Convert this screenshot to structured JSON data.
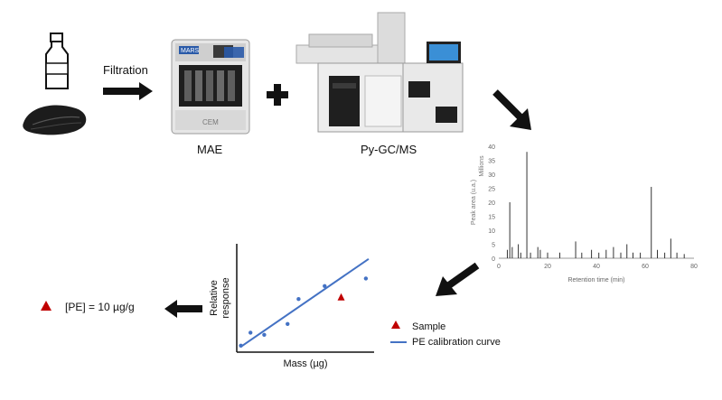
{
  "labels": {
    "filtration": "Filtration",
    "mae": "MAE",
    "pygcms": "Py-GC/MS",
    "result": "[PE] = 10 µg/g"
  },
  "mae_device": {
    "brand": "MARS",
    "model": "CEM"
  },
  "chromatogram": {
    "chart_data": {
      "type": "line",
      "xlabel": "Retention time (min)",
      "ylabel": "Peak area (u.a.)",
      "y_multiplier_label": "Millions",
      "xlim": [
        0,
        80
      ],
      "ylim": [
        0,
        40
      ],
      "x_ticks": [
        "0",
        "20",
        "40",
        "60",
        "80"
      ],
      "y_ticks": [
        "0",
        "5",
        "10",
        "15",
        "20",
        "25",
        "30",
        "35",
        "40"
      ],
      "peaks": [
        {
          "x": 3.5,
          "y": 3
        },
        {
          "x": 4.5,
          "y": 20
        },
        {
          "x": 5.5,
          "y": 4
        },
        {
          "x": 8,
          "y": 5
        },
        {
          "x": 9,
          "y": 2
        },
        {
          "x": 11.5,
          "y": 38
        },
        {
          "x": 13,
          "y": 2
        },
        {
          "x": 16,
          "y": 4
        },
        {
          "x": 17,
          "y": 3
        },
        {
          "x": 20,
          "y": 2
        },
        {
          "x": 25,
          "y": 2
        },
        {
          "x": 31.5,
          "y": 6
        },
        {
          "x": 34,
          "y": 2
        },
        {
          "x": 38,
          "y": 3
        },
        {
          "x": 41,
          "y": 2
        },
        {
          "x": 44,
          "y": 3
        },
        {
          "x": 47,
          "y": 4
        },
        {
          "x": 50,
          "y": 2
        },
        {
          "x": 52.5,
          "y": 5
        },
        {
          "x": 55,
          "y": 2
        },
        {
          "x": 58,
          "y": 2
        },
        {
          "x": 62.5,
          "y": 25.5
        },
        {
          "x": 65,
          "y": 3
        },
        {
          "x": 68,
          "y": 2
        },
        {
          "x": 70.5,
          "y": 7
        },
        {
          "x": 73,
          "y": 2
        },
        {
          "x": 76,
          "y": 1.5
        }
      ]
    }
  },
  "calibration": {
    "chart_data": {
      "type": "scatter",
      "xlabel": "Mass (µg)",
      "ylabel": "Relative response",
      "xlim": [
        0,
        10
      ],
      "ylim": [
        0,
        10
      ],
      "series": [
        {
          "name": "PE calibration curve",
          "kind": "line",
          "points": [
            [
              0.3,
              0.5
            ],
            [
              9.6,
              8.6
            ]
          ]
        },
        {
          "kind": "points",
          "points": [
            [
              0.3,
              0.6
            ],
            [
              1,
              1.8
            ],
            [
              2,
              1.6
            ],
            [
              3.7,
              2.6
            ],
            [
              4.5,
              4.9
            ],
            [
              6.4,
              6.1
            ],
            [
              9.4,
              6.8
            ]
          ]
        },
        {
          "name": "Sample",
          "kind": "marker",
          "points": [
            [
              7.6,
              5.1
            ]
          ]
        }
      ],
      "legend": [
        "Sample",
        "PE calibration curve"
      ],
      "colors": {
        "line": "#4472c4",
        "points": "#4472c4",
        "sample": "#c00000"
      }
    }
  },
  "colors": {
    "arrow": "#111111",
    "accent_red": "#c00000",
    "accent_blue": "#4472c4"
  }
}
